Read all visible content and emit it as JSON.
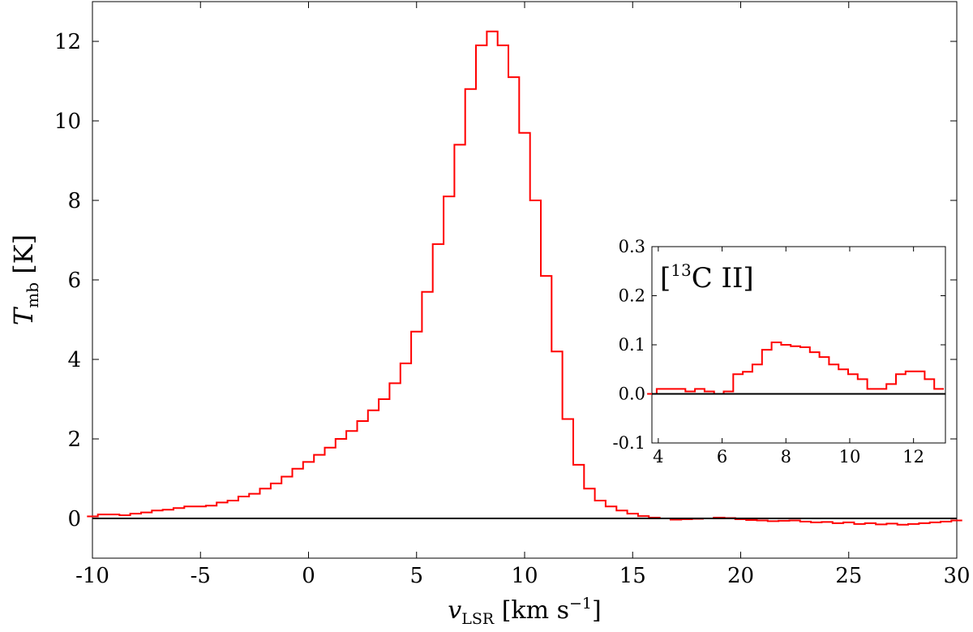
{
  "chart_data": [
    {
      "type": "line",
      "step": true,
      "xlabel": "v_LSR [km s^-1]",
      "ylabel": "T_mb [K]",
      "xlim": [
        -10,
        30
      ],
      "ylim": [
        -1,
        13
      ],
      "xticks": [
        -10,
        -5,
        0,
        5,
        10,
        15,
        20,
        25,
        30
      ],
      "yticks": [
        0,
        2,
        4,
        6,
        8,
        10,
        12
      ],
      "grid": false,
      "series_color": "#ff0000",
      "baseline_color": "#000000",
      "series": [
        {
          "x": [
            -10,
            -9.5,
            -9,
            -8.5,
            -8,
            -7.5,
            -7,
            -6.5,
            -6,
            -5.5,
            -5,
            -4.5,
            -4,
            -3.5,
            -3,
            -2.5,
            -2,
            -1.5,
            -1,
            -0.5,
            0,
            0.5,
            1,
            1.5,
            2,
            2.5,
            3,
            3.5,
            4,
            4.5,
            5,
            5.5,
            6,
            6.5,
            7,
            7.5,
            8,
            8.5,
            9,
            9.5,
            10,
            10.5,
            11,
            11.5,
            12,
            12.5,
            13,
            13.5,
            14,
            14.5,
            15,
            15.5,
            16,
            16.5,
            17,
            17.5,
            18,
            18.5,
            19,
            19.5,
            20,
            20.5,
            21,
            21.5,
            22,
            22.5,
            23,
            23.5,
            24,
            24.5,
            25,
            25.5,
            26,
            26.5,
            27,
            27.5,
            28,
            28.5,
            29,
            29.5,
            30
          ],
          "values": [
            0.05,
            0.1,
            0.1,
            0.08,
            0.12,
            0.15,
            0.2,
            0.22,
            0.26,
            0.3,
            0.3,
            0.32,
            0.4,
            0.45,
            0.55,
            0.62,
            0.75,
            0.88,
            1.05,
            1.25,
            1.42,
            1.6,
            1.78,
            2.0,
            2.2,
            2.45,
            2.72,
            3.0,
            3.4,
            3.9,
            4.7,
            5.7,
            6.9,
            8.1,
            9.4,
            10.8,
            11.9,
            12.25,
            11.9,
            11.1,
            9.7,
            8.0,
            6.1,
            4.2,
            2.5,
            1.35,
            0.75,
            0.45,
            0.3,
            0.2,
            0.12,
            0.06,
            0.02,
            0.0,
            -0.03,
            -0.02,
            -0.01,
            0.0,
            0.02,
            0.01,
            -0.02,
            -0.04,
            -0.05,
            -0.07,
            -0.06,
            -0.05,
            -0.08,
            -0.1,
            -0.09,
            -0.12,
            -0.1,
            -0.14,
            -0.12,
            -0.15,
            -0.13,
            -0.16,
            -0.14,
            -0.12,
            -0.1,
            -0.08,
            -0.05
          ]
        }
      ]
    },
    {
      "type": "line",
      "step": true,
      "title": "[13C II]",
      "xlim": [
        3.8,
        13
      ],
      "ylim": [
        -0.1,
        0.3
      ],
      "xticks": [
        4,
        6,
        8,
        10,
        12
      ],
      "yticks": [
        -0.1,
        0.0,
        0.1,
        0.2,
        0.3
      ],
      "ytick_labels": [
        "-0.1",
        "0.0",
        "0.1",
        "0.2",
        "0.3"
      ],
      "grid": false,
      "series": [
        {
          "x": [
            3.8,
            4.1,
            4.4,
            4.7,
            5.0,
            5.3,
            5.6,
            5.9,
            6.2,
            6.5,
            6.8,
            7.1,
            7.4,
            7.7,
            8.0,
            8.3,
            8.6,
            8.9,
            9.2,
            9.5,
            9.8,
            10.1,
            10.4,
            10.7,
            11.0,
            11.3,
            11.6,
            11.9,
            12.2,
            12.5,
            12.8
          ],
          "values": [
            0.0,
            0.01,
            0.01,
            0.01,
            0.005,
            0.01,
            0.005,
            0.0,
            0.005,
            0.04,
            0.045,
            0.06,
            0.09,
            0.105,
            0.1,
            0.097,
            0.095,
            0.085,
            0.075,
            0.06,
            0.05,
            0.04,
            0.03,
            0.01,
            0.01,
            0.02,
            0.04,
            0.046,
            0.046,
            0.03,
            0.01
          ]
        }
      ]
    }
  ]
}
